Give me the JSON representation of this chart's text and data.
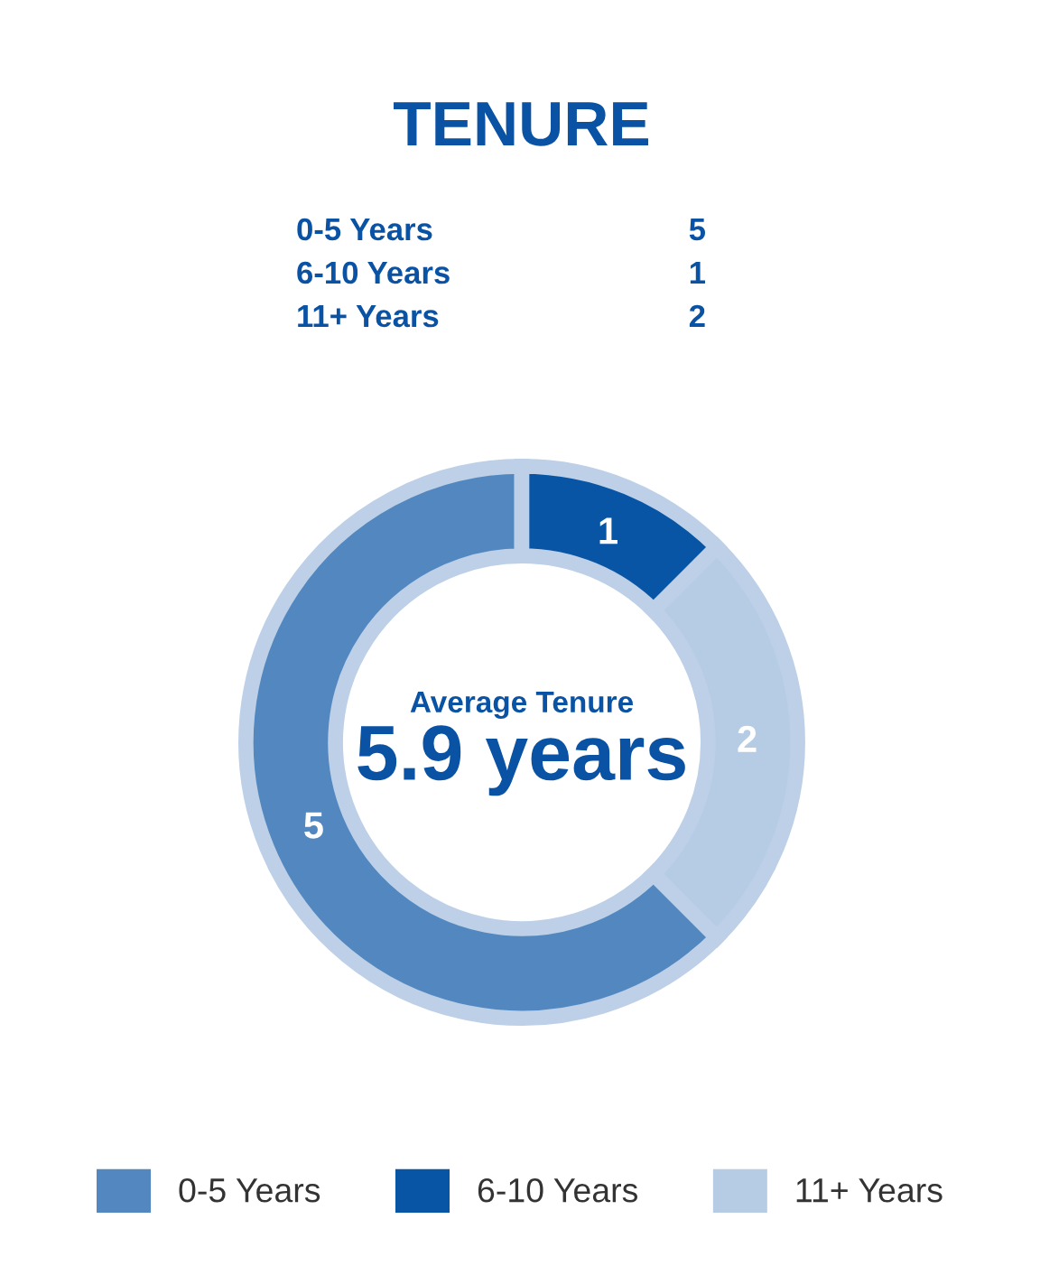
{
  "chart_data": {
    "type": "donut",
    "title": "TENURE",
    "categories": [
      "0-5 Years",
      "6-10 Years",
      "11+ Years"
    ],
    "values": [
      5,
      1,
      2
    ],
    "colors": [
      "#5288bf",
      "#0855a5",
      "#b6cce5"
    ],
    "data_labels": true,
    "legend": "bottom",
    "annotations": [
      "Average Tenure",
      "5.9 years",
      "5",
      "1",
      "2"
    ]
  }
}
